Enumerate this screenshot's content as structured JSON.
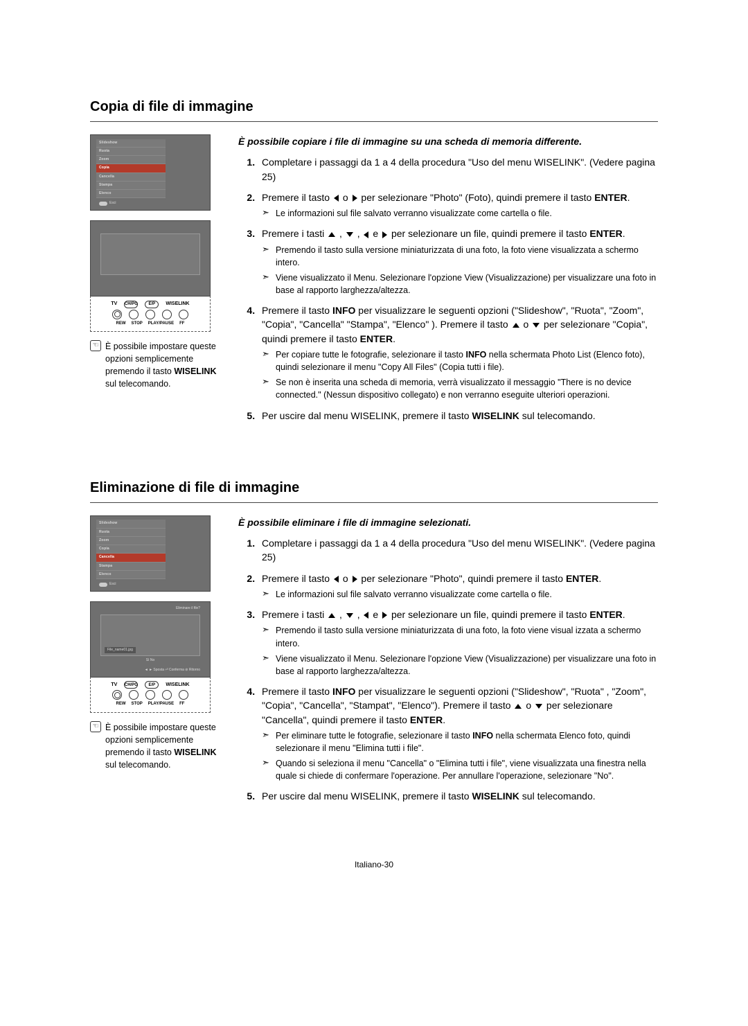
{
  "page_footer": "Italiano-30",
  "sections": [
    {
      "title": "Copia di file di immagine",
      "intro": "È possibile copiare i file di immagine su una scheda di memoria differente.",
      "menu": {
        "items": [
          "Slideshow",
          "Ruota",
          "Zoom",
          "Copia",
          "Cancella",
          "Stampa",
          "Elenco"
        ],
        "highlight_index": 3,
        "exit_label": "Esci"
      },
      "preview": {
        "title": "",
        "caption": "",
        "footer": "",
        "okcancel": ""
      },
      "remote": {
        "top": [
          "TV",
          "CH/PG",
          "E/P",
          "WISELINK"
        ],
        "bottom": [
          "REW",
          "STOP",
          "PLAY/PAUSE",
          "FF"
        ]
      },
      "note_parts": {
        "a": "È possibile impostare queste opzioni semplicemente premendo il tasto ",
        "b": "WISELINK",
        "c": " sul telecomando."
      },
      "steps": [
        {
          "body": "Completare i passaggi da 1 a 4 della procedura \"Uso del menu WISELINK\". (Vedere pagina 25)",
          "subs": []
        },
        {
          "body_parts": {
            "pre": "Premere il tasto ",
            "mid": " o ",
            "post": " per selezionare \"Photo\" (Foto), quindi premere il tasto ",
            "bold": "ENTER",
            "tail": "."
          },
          "arrows": [
            "l",
            "r"
          ],
          "subs": [
            {
              "text": "Le informazioni sul file salvato verranno visualizzate come cartella o file."
            }
          ]
        },
        {
          "body_parts": {
            "pre": "Premere i tasti ",
            "joiner1": " , ",
            "joiner2": " , ",
            "mid": " e ",
            "post": " per selezionare un file, quindi premere il tasto ",
            "bold": "ENTER",
            "tail": "."
          },
          "arrows": [
            "u",
            "d",
            "l",
            "r"
          ],
          "subs": [
            {
              "text": "Premendo il tasto sulla versione miniaturizzata di una foto, la foto viene visualizzata a schermo intero."
            },
            {
              "text": "Viene visualizzato il Menu. Selezionare l'opzione View (Visualizzazione) per visualizzare una foto in base al rapporto larghezza/altezza."
            }
          ]
        },
        {
          "body_multi": {
            "line1_pre": "Premere il tasto ",
            "line1_bold": "INFO",
            "line1_post": " per visualizzare le seguenti opzioni (\"Slideshow\", \"Ruota\", \"Zoom\", \"Copia\", \"Cancella\" \"Stampa\", \"Elenco\" ). Premere il tasto ",
            "line1_mid": " o ",
            "line1_tail": " per selezionare \"Copia\", quindi premere il tasto ",
            "line1_bold2": "ENTER",
            "line1_end": "."
          },
          "arrows": [
            "u",
            "d"
          ],
          "subs": [
            {
              "rich": {
                "a": "Per copiare tutte le fotografie, selezionare il tasto ",
                "b": "INFO",
                "c": " nella schermata Photo List (Elenco foto), quindi selezionare il menu \"Copy All Files\" (Copia tutti i file)."
              }
            },
            {
              "text": "Se non è inserita una scheda di memoria, verrà visualizzato il messaggio \"There is no device connected.\" (Nessun dispositivo collegato) e non verranno eseguite ulteriori operazioni."
            }
          ]
        },
        {
          "body_parts": {
            "pre": "Per uscire dal menu WISELINK, premere il tasto ",
            "bold": "WISELINK",
            "tail": " sul telecomando."
          },
          "subs": []
        }
      ]
    },
    {
      "title": "Eliminazione di file di immagine",
      "intro": "È possibile eliminare i file di immagine selezionati.",
      "menu": {
        "items": [
          "Slideshow",
          "Ruota",
          "Zoom",
          "Copia",
          "Cancella",
          "Stampa",
          "Elenco"
        ],
        "highlight_index": 4,
        "exit_label": "Esci"
      },
      "preview": {
        "title": "Eliminare il file?",
        "caption": "File_name01.jpg",
        "footer": "◄ ► Sposta   ⏎ Conferma   ⊘ Ritorno",
        "okcancel": "Sì          No"
      },
      "remote": {
        "top": [
          "TV",
          "CH/PG",
          "E/P",
          "WISELINK"
        ],
        "bottom": [
          "REW",
          "STOP",
          "PLAY/PAUSE",
          "FF"
        ]
      },
      "note_parts": {
        "a": "È possibile impostare queste opzioni semplicemente premendo il tasto ",
        "b": "WISELINK",
        "c": " sul telecomando."
      },
      "steps": [
        {
          "body": "Completare i passaggi da 1 a 4 della procedura \"Uso del menu WISELINK\". (Vedere pagina 25)",
          "subs": []
        },
        {
          "body_parts": {
            "pre": "Premere il tasto ",
            "mid": " o ",
            "post": " per selezionare \"Photo\", quindi premere il tasto ",
            "bold": "ENTER",
            "tail": "."
          },
          "arrows": [
            "l",
            "r"
          ],
          "subs": [
            {
              "text": "Le informazioni sul file salvato verranno visualizzate come cartella o file."
            }
          ]
        },
        {
          "body_parts": {
            "pre": "Premere i tasti ",
            "joiner1": " , ",
            "joiner2": " , ",
            "mid": " e ",
            "post": " per selezionare un file, quindi premere il tasto ",
            "bold": "ENTER",
            "tail": "."
          },
          "arrows": [
            "u",
            "d",
            "l",
            "r"
          ],
          "subs": [
            {
              "text": "Premendo il tasto sulla versione miniaturizzata di una foto, la foto viene visual izzata a schermo intero."
            },
            {
              "text": "Viene visualizzato il Menu. Selezionare l'opzione View (Visualizzazione) per visualizzare una foto in base al rapporto larghezza/altezza."
            }
          ]
        },
        {
          "body_multi": {
            "line1_pre": "Premere il tasto ",
            "line1_bold": "INFO",
            "line1_post": " per visualizzare le seguenti opzioni (\"Slideshow\", \"Ruota\" , \"Zoom\", \"Copia\", \"Cancella\", \"Stampat\", \"Elenco\"). Premere il tasto ",
            "line1_mid": " o ",
            "line1_tail": " per selezionare \"Cancella\", quindi premere il tasto ",
            "line1_bold2": "ENTER",
            "line1_end": "."
          },
          "arrows": [
            "u",
            "d"
          ],
          "subs": [
            {
              "rich": {
                "a": "Per eliminare tutte le fotografie, selezionare il tasto ",
                "b": "INFO",
                "c": " nella schermata Elenco foto, quindi selezionare il menu \"Elimina tutti i file\"."
              }
            },
            {
              "text": "Quando si seleziona il menu \"Cancella\" o \"Elimina tutti i file\", viene visualizzata una finestra nella quale si chiede di confermare l'operazione. Per annullare l'operazione, selezionare \"No\"."
            }
          ]
        },
        {
          "body_parts": {
            "pre": "Per uscire dal menu WISELINK, premere il tasto ",
            "bold": "WISELINK",
            "tail": " sul telecomando."
          },
          "subs": []
        }
      ]
    }
  ]
}
